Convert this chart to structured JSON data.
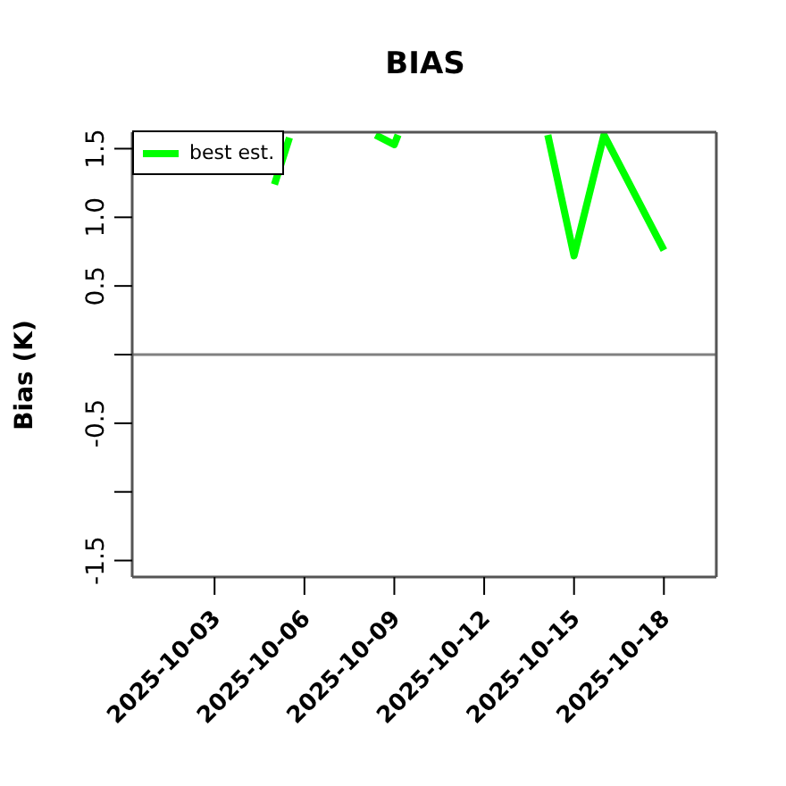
{
  "chart_data": {
    "type": "line",
    "title": "BIAS",
    "ylabel": "Bias (K)",
    "xlim": [
      "2025-09-30T06:00",
      "2025-10-19T18:00"
    ],
    "xticks": [
      "2025-10-03",
      "2025-10-06",
      "2025-10-09",
      "2025-10-12",
      "2025-10-15",
      "2025-10-18"
    ],
    "ylim": [
      -1.62,
      1.62
    ],
    "yticks": [
      -1.5,
      {
        "value": -1,
        "label": null
      },
      -0.5,
      {
        "value": 0,
        "label": null
      },
      0.5,
      {
        "value": 1,
        "label": "1.0"
      },
      1.5
    ],
    "series": [
      {
        "name": "best est.",
        "color": "#00ff00",
        "x": [
          "2025-10-05",
          "2025-10-05T12:00",
          "2025-10-06",
          "2025-10-08T09:00",
          "2025-10-09",
          "2025-10-09T03:00",
          "2025-10-12",
          "2025-10-14T03:00",
          "2025-10-15",
          "2025-10-16",
          "2025-10-18"
        ],
        "values": [
          1.24,
          1.58,
          null,
          1.6,
          1.53,
          1.6,
          null,
          1.6,
          0.72,
          1.6,
          0.76
        ]
      }
    ],
    "ref_lines": [
      {
        "axis": "y",
        "value": 0,
        "label": null,
        "color": "#808080"
      }
    ],
    "legend": "top left",
    "grid": false,
    "marker": "none",
    "line_style": "solid"
  }
}
